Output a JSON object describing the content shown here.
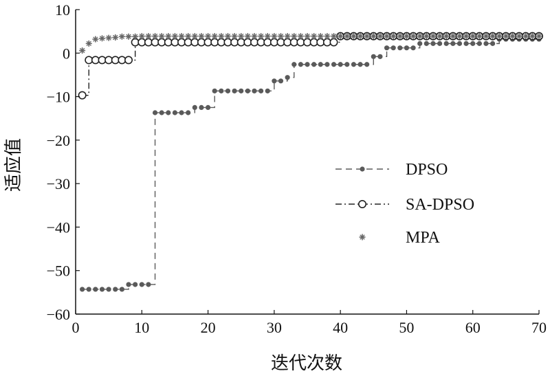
{
  "chart_data": {
    "type": "line",
    "xlabel": "迭代次数",
    "ylabel": "适应值",
    "xlim": [
      0,
      70
    ],
    "ylim": [
      -60,
      10
    ],
    "xticks": [
      0,
      10,
      20,
      30,
      40,
      50,
      60,
      70
    ],
    "yticks": [
      -60,
      -50,
      -40,
      -30,
      -20,
      -10,
      0,
      10
    ],
    "xtick_labels": [
      "0",
      "10",
      "20",
      "30",
      "40",
      "50",
      "60",
      "70"
    ],
    "ytick_labels": [
      "−60",
      "−50",
      "−40",
      "−30",
      "−20",
      "−10",
      "0",
      "10"
    ],
    "grid": false,
    "legend_position": "center-right",
    "series": [
      {
        "name": "DPSO",
        "line_style": "dashed",
        "marker": "dot",
        "color": "#5a5a5a",
        "x": [
          1,
          2,
          3,
          4,
          5,
          6,
          7,
          8,
          9,
          10,
          11,
          12,
          13,
          14,
          15,
          16,
          17,
          18,
          19,
          20,
          21,
          22,
          23,
          24,
          25,
          26,
          27,
          28,
          29,
          30,
          31,
          32,
          33,
          34,
          35,
          36,
          37,
          38,
          39,
          40,
          41,
          42,
          43,
          44,
          45,
          46,
          47,
          48,
          49,
          50,
          51,
          52,
          53,
          54,
          55,
          56,
          57,
          58,
          59,
          60,
          61,
          62,
          63,
          64,
          65,
          66,
          67,
          68,
          69,
          70
        ],
        "y": [
          -54.3,
          -54.3,
          -54.3,
          -54.3,
          -54.3,
          -54.3,
          -54.3,
          -53.2,
          -53.2,
          -53.2,
          -53.2,
          -13.7,
          -13.7,
          -13.7,
          -13.7,
          -13.7,
          -13.7,
          -12.5,
          -12.5,
          -12.5,
          -8.7,
          -8.7,
          -8.7,
          -8.7,
          -8.7,
          -8.7,
          -8.7,
          -8.7,
          -8.7,
          -6.4,
          -6.4,
          -5.6,
          -2.6,
          -2.6,
          -2.6,
          -2.6,
          -2.6,
          -2.6,
          -2.6,
          -2.6,
          -2.6,
          -2.6,
          -2.6,
          -2.6,
          -0.8,
          -0.8,
          1.2,
          1.2,
          1.2,
          1.2,
          1.2,
          2.2,
          2.2,
          2.2,
          2.2,
          2.2,
          2.2,
          2.2,
          2.2,
          2.2,
          2.2,
          2.2,
          2.2,
          3.2,
          3.2,
          3.2,
          3.2,
          3.2,
          3.2,
          3.2
        ]
      },
      {
        "name": "SA-DPSO",
        "line_style": "dashdot",
        "marker": "circle",
        "color": "#222222",
        "x": [
          1,
          2,
          3,
          4,
          5,
          6,
          7,
          8,
          9,
          10,
          11,
          12,
          13,
          14,
          15,
          16,
          17,
          18,
          19,
          20,
          21,
          22,
          23,
          24,
          25,
          26,
          27,
          28,
          29,
          30,
          31,
          32,
          33,
          34,
          35,
          36,
          37,
          38,
          39,
          40,
          41,
          42,
          43,
          44,
          45,
          46,
          47,
          48,
          49,
          50,
          51,
          52,
          53,
          54,
          55,
          56,
          57,
          58,
          59,
          60,
          61,
          62,
          63,
          64,
          65,
          66,
          67,
          68,
          69,
          70
        ],
        "y": [
          -9.7,
          -1.6,
          -1.6,
          -1.6,
          -1.6,
          -1.6,
          -1.6,
          -1.6,
          2.5,
          2.5,
          2.5,
          2.5,
          2.5,
          2.5,
          2.5,
          2.5,
          2.5,
          2.5,
          2.5,
          2.5,
          2.5,
          2.5,
          2.5,
          2.5,
          2.5,
          2.5,
          2.5,
          2.5,
          2.5,
          2.5,
          2.5,
          2.5,
          2.5,
          2.5,
          2.5,
          2.5,
          2.5,
          2.5,
          2.5,
          3.9,
          3.9,
          3.9,
          3.9,
          3.9,
          3.9,
          3.9,
          3.9,
          3.9,
          3.9,
          3.9,
          3.9,
          3.9,
          3.9,
          3.9,
          3.9,
          3.9,
          3.9,
          3.9,
          3.9,
          3.9,
          3.9,
          3.9,
          3.9,
          3.9,
          3.9,
          3.9,
          3.9,
          3.9,
          3.9,
          3.9
        ]
      },
      {
        "name": "MPA",
        "line_style": "none",
        "marker": "star",
        "color": "#666666",
        "x": [
          1,
          2,
          3,
          4,
          5,
          6,
          7,
          8,
          9,
          10,
          11,
          12,
          13,
          14,
          15,
          16,
          17,
          18,
          19,
          20,
          21,
          22,
          23,
          24,
          25,
          26,
          27,
          28,
          29,
          30,
          31,
          32,
          33,
          34,
          35,
          36,
          37,
          38,
          39,
          40,
          41,
          42,
          43,
          44,
          45,
          46,
          47,
          48,
          49,
          50,
          51,
          52,
          53,
          54,
          55,
          56,
          57,
          58,
          59,
          60,
          61,
          62,
          63,
          64,
          65,
          66,
          67,
          68,
          69,
          70
        ],
        "y": [
          0.6,
          2.2,
          3.2,
          3.4,
          3.5,
          3.6,
          3.8,
          3.8,
          3.8,
          3.9,
          3.9,
          3.9,
          3.9,
          3.9,
          3.9,
          3.9,
          3.9,
          3.9,
          3.9,
          3.9,
          3.9,
          3.9,
          3.9,
          3.9,
          3.9,
          3.9,
          3.9,
          3.9,
          3.9,
          3.9,
          3.9,
          3.9,
          3.9,
          3.9,
          3.9,
          3.9,
          3.9,
          3.9,
          3.9,
          3.9,
          3.9,
          3.9,
          3.9,
          3.9,
          3.9,
          3.9,
          3.9,
          3.9,
          3.9,
          3.9,
          3.9,
          3.9,
          3.9,
          3.9,
          3.9,
          3.9,
          3.9,
          3.9,
          3.9,
          3.9,
          3.9,
          3.9,
          3.9,
          3.9,
          3.9,
          3.9,
          3.9,
          3.9,
          3.9,
          3.9
        ]
      }
    ]
  }
}
